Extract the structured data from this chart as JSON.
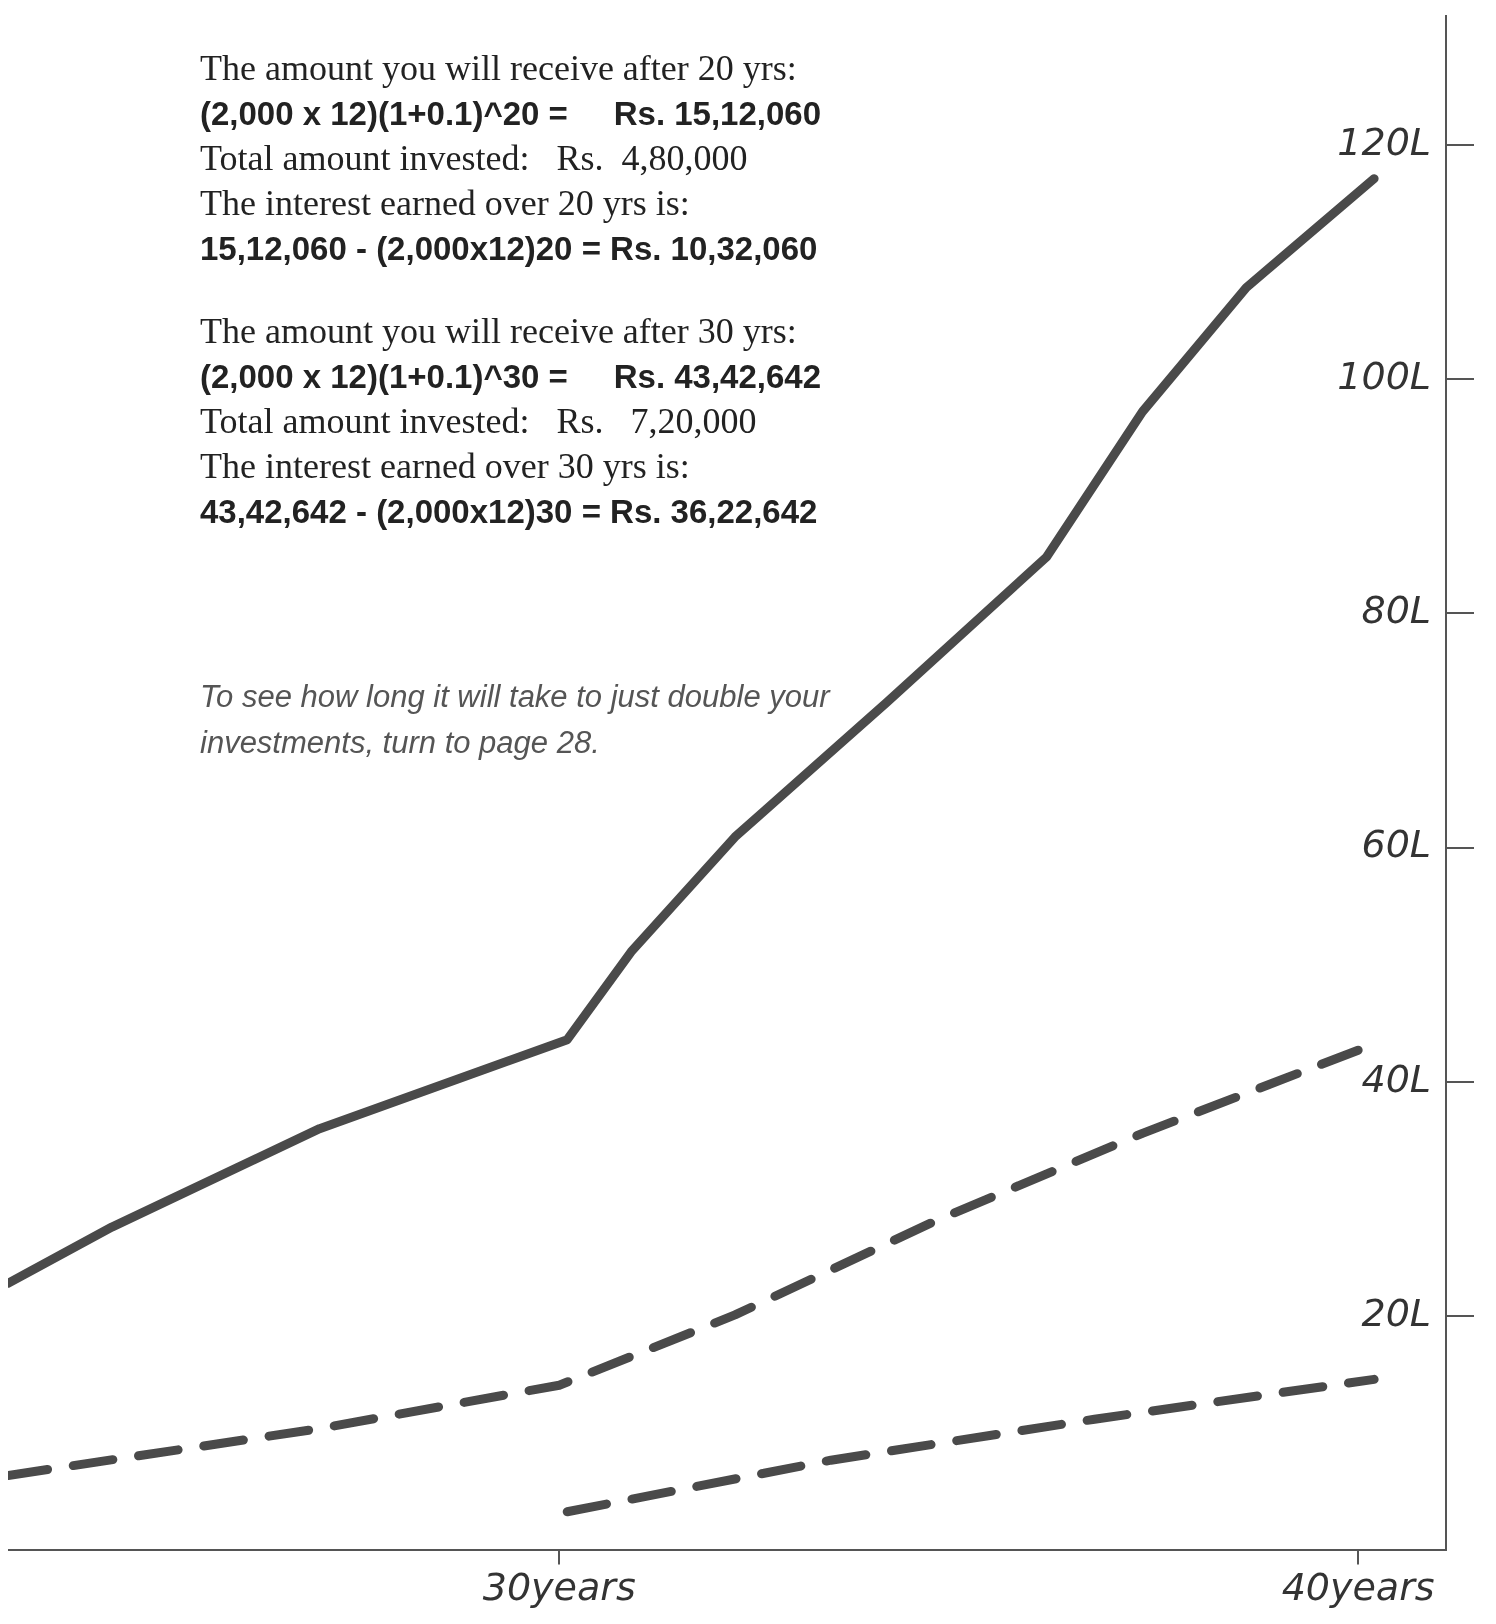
{
  "chart_data": {
    "type": "line",
    "xlim": [
      23.1,
      41.1
    ],
    "ylim": [
      0,
      131
    ],
    "xticks": [
      {
        "value": 30,
        "label": "30years"
      },
      {
        "value": 40,
        "label": "40years"
      }
    ],
    "yticks": [
      {
        "value": 20,
        "label": "20L"
      },
      {
        "value": 40,
        "label": "40L"
      },
      {
        "value": 60,
        "label": "60L"
      },
      {
        "value": 80,
        "label": "80L"
      },
      {
        "value": 100,
        "label": "100L"
      },
      {
        "value": 120,
        "label": "120L"
      }
    ],
    "grid": false,
    "legend": false,
    "marker": "none",
    "series": [
      {
        "color": "#4a4a4a",
        "line_style": "solid",
        "x": [
          23.1,
          24.4,
          27.0,
          30.1,
          30.9,
          32.2,
          34.1,
          36.1,
          37.3,
          38.6,
          40.2
        ],
        "values": [
          22.8,
          27.6,
          36.0,
          43.6,
          51.1,
          60.9,
          72.4,
          84.8,
          97.2,
          107.8,
          117.1
        ]
      },
      {
        "color": "#4a4a4a",
        "line_style": "dashed",
        "x": [
          23.1,
          27.0,
          30.0,
          32.2,
          34.7,
          37.3,
          40.0
        ],
        "values": [
          6.4,
          10.4,
          14.1,
          20.1,
          28.1,
          35.6,
          42.7
        ]
      },
      {
        "color": "#4a4a4a",
        "line_style": "dashed",
        "x": [
          30.1,
          33.4,
          36.7,
          40.2
        ],
        "values": [
          3.3,
          7.7,
          11.2,
          14.6
        ]
      }
    ],
    "annotations": [
      "The amount you will receive after 20 yrs:",
      "(2,000 x 12)(1+0.1)^20 =     Rs. 15,12,060",
      "Total amount invested:   Rs.  4,80,000",
      "The interest earned over 20 yrs is:",
      "15,12,060 - (2,000x12)20 = Rs. 10,32,060",
      "The amount you will receive after 30 yrs:",
      "(2,000 x 12)(1+0.1)^30 =     Rs. 43,42,642",
      "Total amount invested:   Rs.   7,20,000",
      "The interest earned over 30 yrs is:",
      "43,42,642 - (2,000x12)30 = Rs. 36,22,642",
      "To see how long it will take to just double your investments, turn to page 28."
    ]
  }
}
